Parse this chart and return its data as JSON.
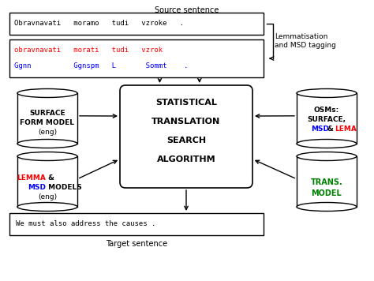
{
  "bg_color": "#ffffff",
  "source_sentence": "Obravnavati   moramo   tudi   vzroke   .",
  "lemma_line1_red": "obravnavati   morati   tudi   vzrok",
  "lemma_line2_blue": "Ggnn          Ggnspm   L       Sommt    .",
  "target_sentence": "We must also address the causes .",
  "center_box_lines": [
    "STATISTICAL",
    "TRANSLATION",
    "SEARCH",
    "ALGORITHM"
  ],
  "label_source": "Source sentence",
  "label_target": "Target sentence",
  "label_lemma": "Lemmatisation\nand MSD tagging",
  "surface_form_text": "SURFACE\nFORM MODEL\n(eng)",
  "lemma_red": "LEMMA",
  "lemma_amp": " &",
  "msd_blue": "MSD",
  "msd_models": " MODELS",
  "eng_text": "(eng)",
  "osm_line1": "OSMs:",
  "osm_line2": "SURFACE,",
  "osm_msd": "MSD",
  "osm_amp": " & ",
  "osm_lema": "LEMA",
  "trans_text": "TRANS.\nMODEL"
}
